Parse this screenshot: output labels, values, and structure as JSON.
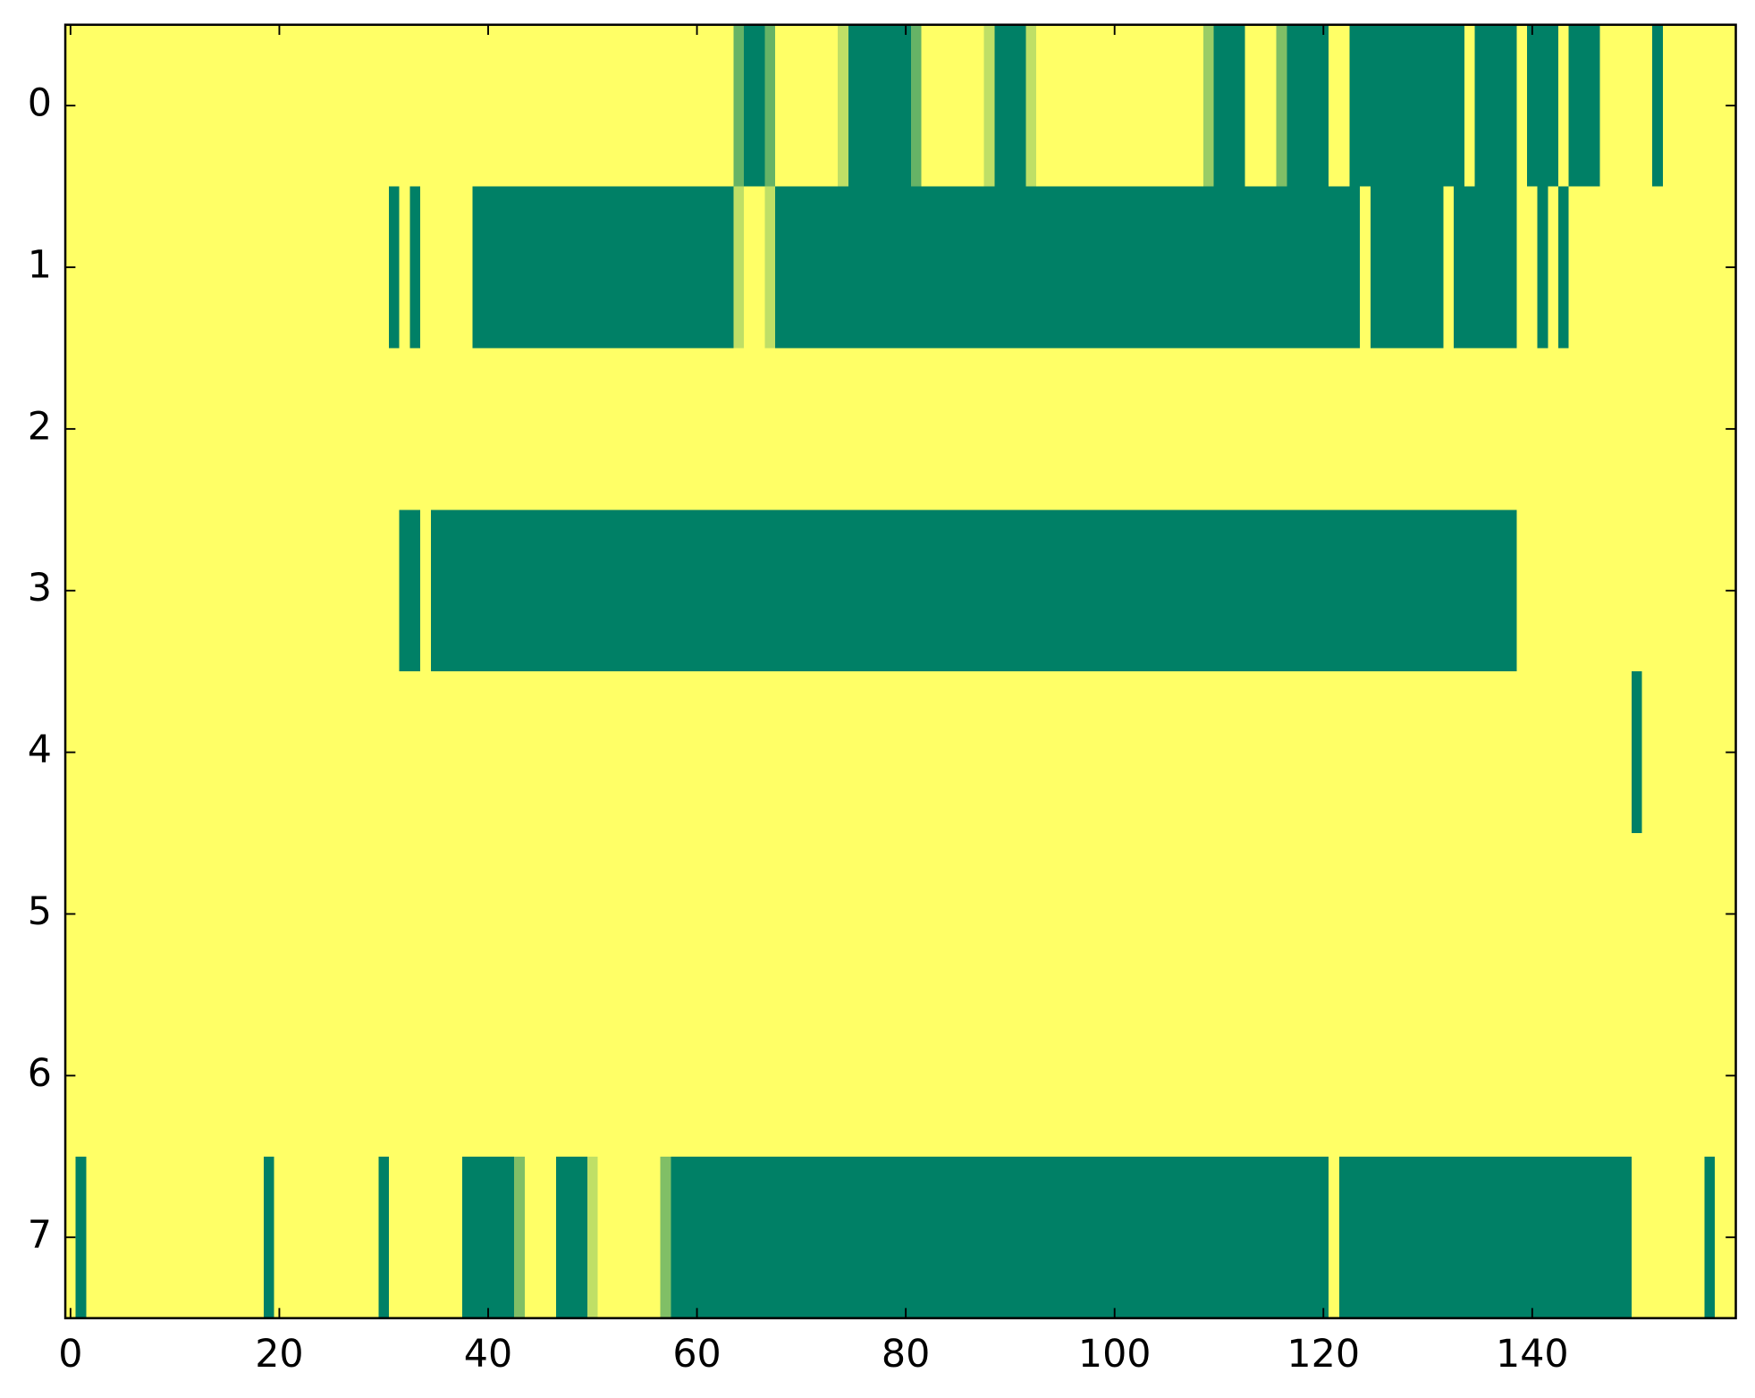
{
  "chart_data": {
    "type": "heatmap",
    "cmap": "summer",
    "vmin": 0,
    "vmax": 1,
    "fill_value": 1,
    "xlim": [
      -0.5,
      159.5
    ],
    "ylim": [
      7.5,
      -0.5
    ],
    "xticks": [
      0,
      20,
      40,
      60,
      80,
      100,
      120,
      140
    ],
    "yticks": [
      0,
      1,
      2,
      3,
      4,
      5,
      6,
      7
    ],
    "rows": [
      [
        {
          "start": 64,
          "end": 64,
          "value": 0.4
        },
        {
          "start": 65,
          "end": 66,
          "value": 0
        },
        {
          "start": 67,
          "end": 67,
          "value": 0.4
        },
        {
          "start": 74,
          "end": 74,
          "value": 0.75
        },
        {
          "start": 75,
          "end": 80,
          "value": 0
        },
        {
          "start": 81,
          "end": 81,
          "value": 0.4
        },
        {
          "start": 88,
          "end": 88,
          "value": 0.75
        },
        {
          "start": 89,
          "end": 91,
          "value": 0
        },
        {
          "start": 92,
          "end": 92,
          "value": 0.75
        },
        {
          "start": 109,
          "end": 109,
          "value": 0.6
        },
        {
          "start": 110,
          "end": 112,
          "value": 0
        },
        {
          "start": 116,
          "end": 116,
          "value": 0.5
        },
        {
          "start": 117,
          "end": 120,
          "value": 0
        },
        {
          "start": 123,
          "end": 133,
          "value": 0
        },
        {
          "start": 135,
          "end": 138,
          "value": 0
        },
        {
          "start": 140,
          "end": 142,
          "value": 0
        },
        {
          "start": 144,
          "end": 146,
          "value": 0
        },
        {
          "start": 152,
          "end": 152,
          "value": 0
        }
      ],
      [
        {
          "start": 31,
          "end": 31,
          "value": 0
        },
        {
          "start": 33,
          "end": 33,
          "value": 0
        },
        {
          "start": 39,
          "end": 63,
          "value": 0
        },
        {
          "start": 64,
          "end": 64,
          "value": 0.75
        },
        {
          "start": 67,
          "end": 67,
          "value": 0.75
        },
        {
          "start": 68,
          "end": 123,
          "value": 0
        },
        {
          "start": 125,
          "end": 131,
          "value": 0
        },
        {
          "start": 133,
          "end": 138,
          "value": 0
        },
        {
          "start": 141,
          "end": 141,
          "value": 0
        },
        {
          "start": 143,
          "end": 143,
          "value": 0
        }
      ],
      [],
      [
        {
          "start": 32,
          "end": 33,
          "value": 0
        },
        {
          "start": 35,
          "end": 138,
          "value": 0
        }
      ],
      [
        {
          "start": 150,
          "end": 150,
          "value": 0
        }
      ],
      [],
      [],
      [
        {
          "start": 1,
          "end": 1,
          "value": 0
        },
        {
          "start": 19,
          "end": 19,
          "value": 0
        },
        {
          "start": 30,
          "end": 30,
          "value": 0
        },
        {
          "start": 38,
          "end": 42,
          "value": 0
        },
        {
          "start": 43,
          "end": 43,
          "value": 0.5
        },
        {
          "start": 47,
          "end": 49,
          "value": 0
        },
        {
          "start": 50,
          "end": 50,
          "value": 0.75
        },
        {
          "start": 57,
          "end": 57,
          "value": 0.5
        },
        {
          "start": 58,
          "end": 120,
          "value": 0
        },
        {
          "start": 122,
          "end": 149,
          "value": 0
        },
        {
          "start": 157,
          "end": 157,
          "value": 0
        }
      ]
    ]
  }
}
